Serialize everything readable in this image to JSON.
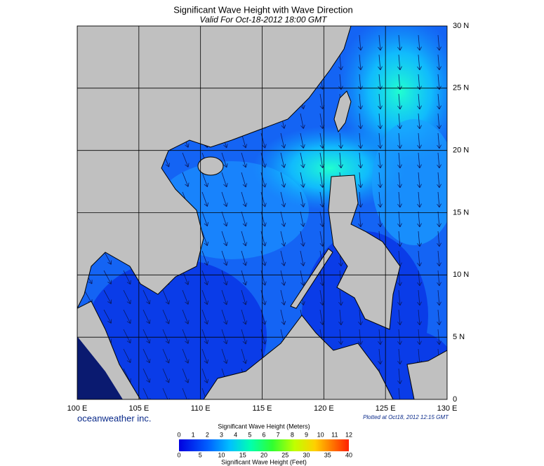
{
  "header": {
    "title": "Significant Wave Height with Wave Direction",
    "subtitle": "Valid For Oct-18-2012 18:00 GMT"
  },
  "map": {
    "lat_labels": [
      "30 N",
      "25 N",
      "20 N",
      "15 N",
      "10 N",
      "5 N",
      "0"
    ],
    "lon_labels": [
      "100 E",
      "105 E",
      "110 E",
      "115 E",
      "120 E",
      "125 E",
      "130 E"
    ]
  },
  "footer": {
    "brand": "oceanweather inc.",
    "plotted": "Plotted at Oct18, 2012 12:15 GMT"
  },
  "colorbar": {
    "title_top": "Significant Wave Height (Meters)",
    "ticks_top": [
      0,
      1,
      2,
      3,
      4,
      5,
      6,
      7,
      8,
      9,
      10,
      11,
      12
    ],
    "title_bottom": "Significant Wave Height (Feet)",
    "ticks_bottom": [
      0,
      5,
      10,
      15,
      20,
      25,
      30,
      35,
      40
    ]
  }
}
